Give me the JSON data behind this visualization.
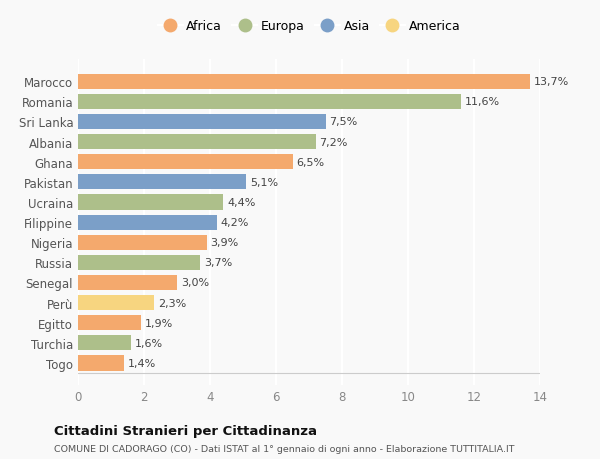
{
  "categories": [
    "Togo",
    "Turchia",
    "Egitto",
    "Perù",
    "Senegal",
    "Russia",
    "Nigeria",
    "Filippine",
    "Ucraina",
    "Pakistan",
    "Ghana",
    "Albania",
    "Sri Lanka",
    "Romania",
    "Marocco"
  ],
  "values": [
    1.4,
    1.6,
    1.9,
    2.3,
    3.0,
    3.7,
    3.9,
    4.2,
    4.4,
    5.1,
    6.5,
    7.2,
    7.5,
    11.6,
    13.7
  ],
  "continents": [
    "Africa",
    "Europa",
    "Africa",
    "America",
    "Africa",
    "Europa",
    "Africa",
    "Asia",
    "Europa",
    "Asia",
    "Africa",
    "Europa",
    "Asia",
    "Europa",
    "Africa"
  ],
  "colors": {
    "Africa": "#F4A96D",
    "Europa": "#ADBF8A",
    "Asia": "#7B9FC8",
    "America": "#F7D580"
  },
  "legend_order": [
    "Africa",
    "Europa",
    "Asia",
    "America"
  ],
  "xlim": [
    0,
    14
  ],
  "xticks": [
    0,
    2,
    4,
    6,
    8,
    10,
    12,
    14
  ],
  "title": "Cittadini Stranieri per Cittadinanza",
  "subtitle": "COMUNE DI CADORAGO (CO) - Dati ISTAT al 1° gennaio di ogni anno - Elaborazione TUTTITALIA.IT",
  "bg_color": "#f9f9f9",
  "grid_color": "#ffffff",
  "bar_height": 0.75
}
